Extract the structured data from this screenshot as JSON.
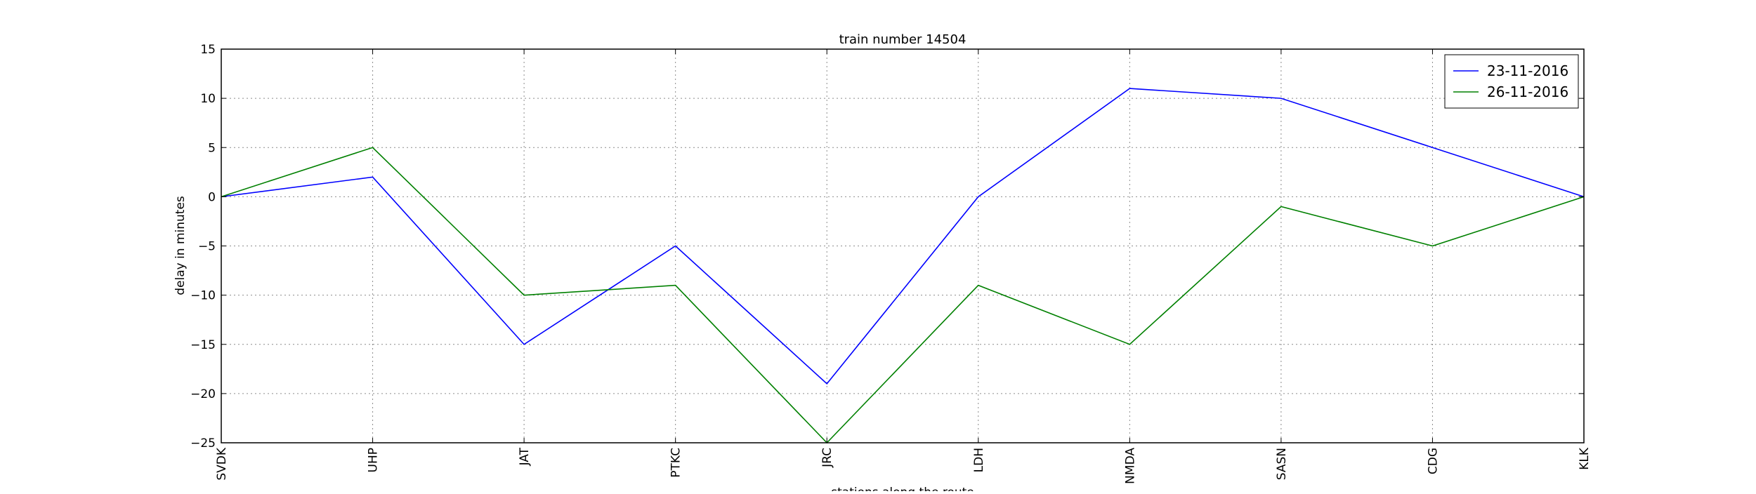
{
  "chart_data": {
    "type": "line",
    "title": "train number 14504",
    "xlabel": "stations along the route",
    "ylabel": "delay in minutes",
    "categories": [
      "SVDK",
      "UHP",
      "JAT",
      "PTKC",
      "JRC",
      "LDH",
      "NMDA",
      "SASN",
      "CDG",
      "KLK"
    ],
    "ylim": [
      -25,
      15
    ],
    "yticks": [
      -25,
      -20,
      -15,
      -10,
      -5,
      0,
      5,
      10,
      15
    ],
    "ytick_labels": [
      "−25",
      "−20",
      "−15",
      "−10",
      "−5",
      "0",
      "5",
      "10",
      "15"
    ],
    "grid": true,
    "legend_position": "top-right",
    "series": [
      {
        "name": "23-11-2016",
        "color": "#0000ff",
        "values": [
          0,
          2,
          -15,
          -5,
          -19,
          0,
          11,
          10,
          5,
          0
        ]
      },
      {
        "name": "26-11-2016",
        "color": "#008000",
        "values": [
          0,
          5,
          -10,
          -9,
          -25,
          -9,
          -15,
          -1,
          -5,
          0
        ]
      }
    ]
  }
}
